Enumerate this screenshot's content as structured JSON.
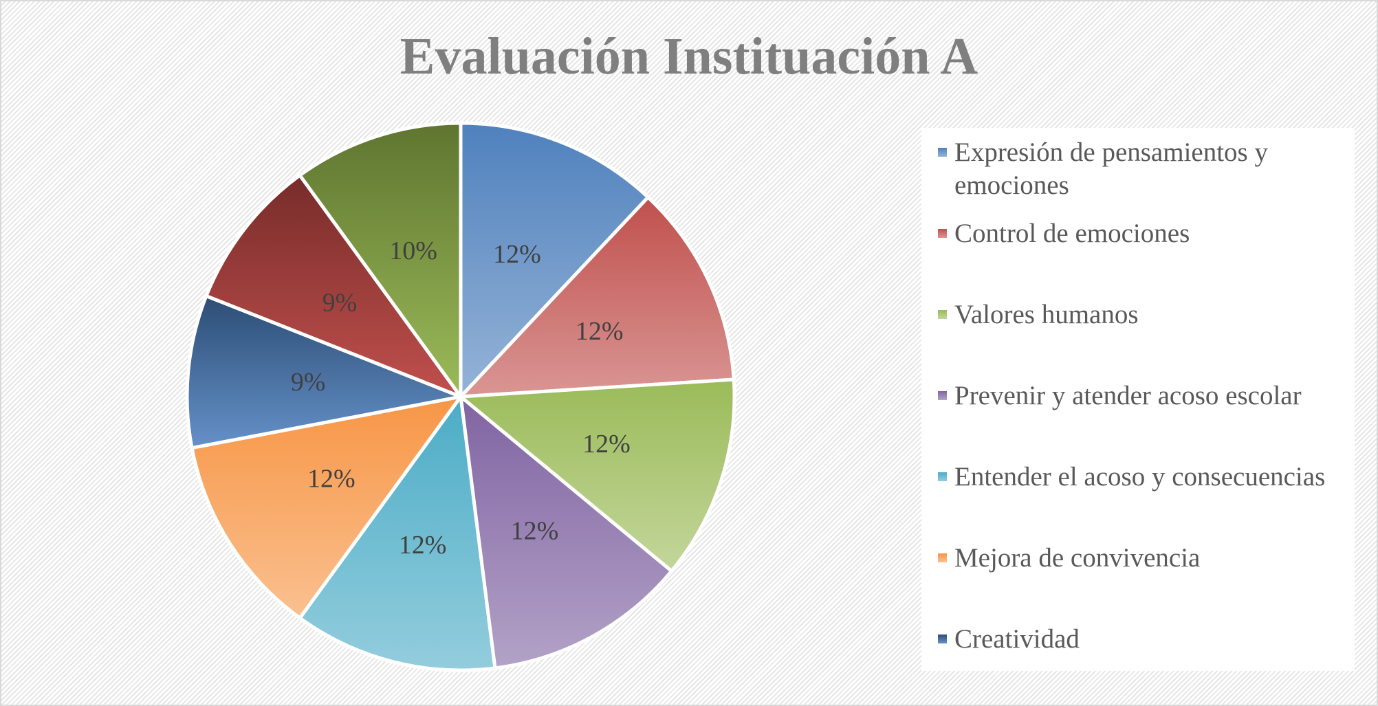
{
  "chart_data": {
    "type": "pie",
    "title": "Evaluación Instituación A",
    "legend_position": "right",
    "slices": [
      {
        "name": "Expresión de pensamientos y emociones",
        "value": 12,
        "label": "12%",
        "color": "#4f81bd",
        "color_light": "#95b3d7"
      },
      {
        "name": "Control de emociones",
        "value": 12,
        "label": "12%",
        "color": "#c0504d",
        "color_light": "#d99694"
      },
      {
        "name": "Valores humanos",
        "value": 12,
        "label": "12%",
        "color": "#9bbb59",
        "color_light": "#c3d69b"
      },
      {
        "name": "Prevenir y atender acoso escolar",
        "value": 12,
        "label": "12%",
        "color": "#8064a2",
        "color_light": "#b3a2c7"
      },
      {
        "name": "Entender el acoso y consecuencias",
        "value": 12,
        "label": "12%",
        "color": "#4bacc6",
        "color_light": "#93cddd"
      },
      {
        "name": "Mejora de convivencia",
        "value": 12,
        "label": "12%",
        "color": "#f79646",
        "color_light": "#fac090"
      },
      {
        "name": "Creatividad",
        "value": 9,
        "label": "9%",
        "color": "#2c4d75",
        "color_light": "#6591c9"
      },
      {
        "name": "",
        "value": 9,
        "label": "9%",
        "color": "#772c2a",
        "color_light": "#c0504d"
      },
      {
        "name": "",
        "value": 10,
        "label": "10%",
        "color": "#5f7530",
        "color_light": "#9bbb59"
      }
    ]
  }
}
